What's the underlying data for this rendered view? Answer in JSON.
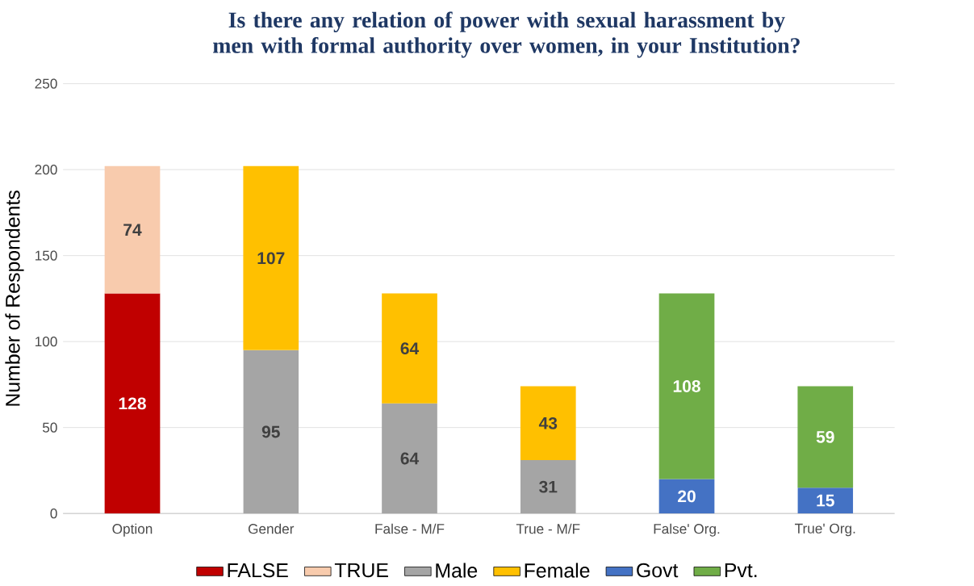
{
  "chart_data": {
    "type": "bar",
    "stacked": true,
    "data_labels": true,
    "grid": "y",
    "legend": "bottom",
    "title": "Is there any relation of power with sexual harassment by men with formal authority over women, in your Institution?",
    "ylabel": "Number of Respondents",
    "categories": [
      "Option",
      "Gender",
      "False - M/F",
      "True - M/F",
      "False' Org.",
      "True' Org."
    ],
    "ylim": [
      0,
      250
    ],
    "yticks": [
      0,
      50,
      100,
      150,
      200,
      250
    ],
    "series": [
      {
        "name": "FALSE",
        "color": "#c00000",
        "values": [
          128,
          null,
          null,
          null,
          null,
          null
        ]
      },
      {
        "name": "TRUE",
        "color": "#f8cbad",
        "values": [
          74,
          null,
          null,
          null,
          null,
          null
        ]
      },
      {
        "name": "Male",
        "color": "#a5a5a5",
        "values": [
          null,
          95,
          64,
          31,
          null,
          null
        ]
      },
      {
        "name": "Female",
        "color": "#ffc000",
        "values": [
          null,
          107,
          64,
          43,
          null,
          null
        ]
      },
      {
        "name": "Govt",
        "color": "#4472c4",
        "values": [
          null,
          null,
          null,
          null,
          20,
          15
        ]
      },
      {
        "name": "Pvt.",
        "color": "#70ad47",
        "values": [
          null,
          null,
          null,
          null,
          108,
          59
        ]
      }
    ]
  }
}
